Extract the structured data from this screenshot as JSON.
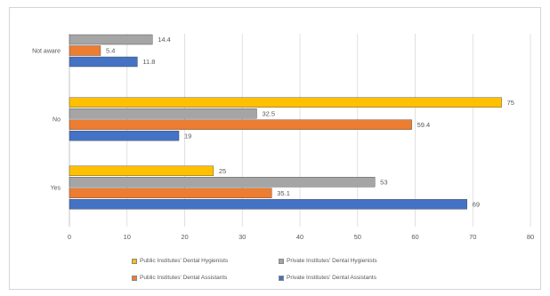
{
  "chart_data": {
    "type": "bar",
    "orientation": "horizontal",
    "title": "",
    "xlabel": "",
    "ylabel": "",
    "xlim": [
      0,
      80
    ],
    "x_ticks": [
      "0",
      "10",
      "20",
      "30",
      "40",
      "50",
      "60",
      "70",
      "80"
    ],
    "grid": true,
    "legend_position": "bottom",
    "categories": [
      "Yes",
      "No",
      "Not aware"
    ],
    "series": [
      {
        "name": "Public Institutes' Dental Hygienists",
        "color": "#FFC000",
        "values": [
          25,
          75,
          null
        ],
        "labels": [
          "25",
          "75",
          ""
        ]
      },
      {
        "name": "Private Institutes' Dental Hygienists",
        "color": "#A5A5A5",
        "values": [
          53,
          32.5,
          14.4
        ],
        "labels": [
          "53",
          "32.5",
          "14.4"
        ]
      },
      {
        "name": "Public Institutes' Dental Assistants",
        "color": "#ED7D31",
        "values": [
          35.1,
          59.4,
          5.4
        ],
        "labels": [
          "35.1",
          "59.4",
          "5.4"
        ]
      },
      {
        "name": "Private Institutes' Dental Assistants",
        "color": "#4472C4",
        "values": [
          69,
          19,
          11.8
        ],
        "labels": [
          "69",
          "19",
          "11.8"
        ]
      }
    ]
  }
}
